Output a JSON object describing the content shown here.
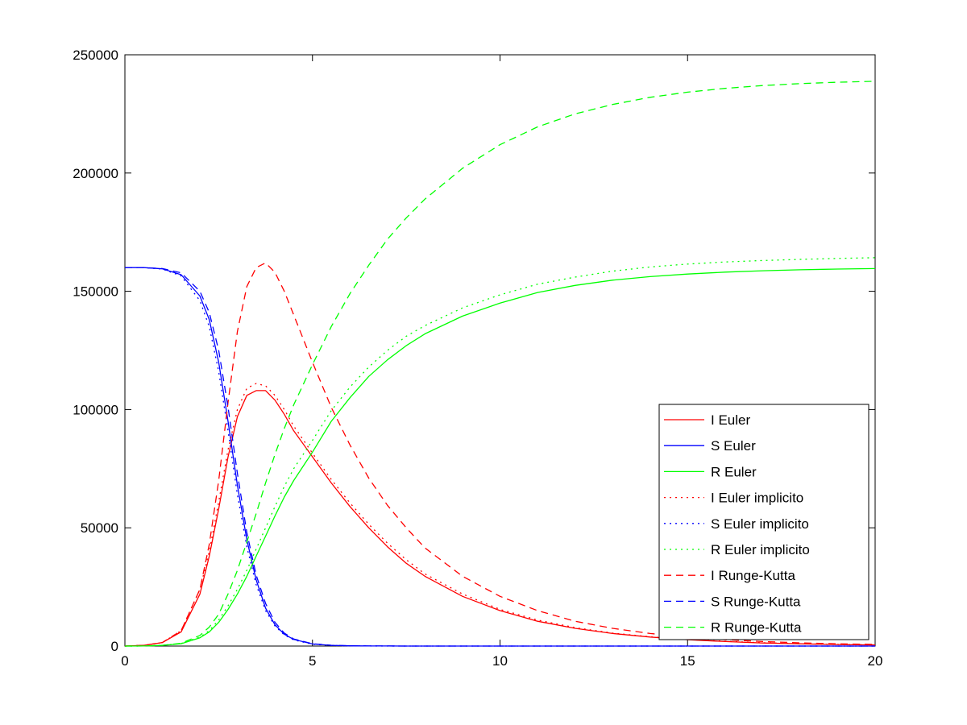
{
  "chart_data": {
    "type": "line",
    "title": "",
    "xlabel": "",
    "ylabel": "",
    "xlim": [
      0,
      20
    ],
    "ylim": [
      0,
      250000
    ],
    "x_ticks": [
      "0",
      "5",
      "10",
      "15",
      "20"
    ],
    "y_ticks": [
      "0",
      "50000",
      "100000",
      "150000",
      "200000",
      "250000"
    ],
    "grid": false,
    "legend_position": "bottom-right",
    "x": [
      0,
      0.5,
      1,
      1.5,
      2,
      2.25,
      2.5,
      2.75,
      3,
      3.25,
      3.5,
      3.75,
      4,
      4.25,
      4.5,
      5,
      5.5,
      6,
      6.5,
      7,
      7.5,
      8,
      9,
      10,
      11,
      12,
      13,
      14,
      15,
      16,
      17,
      18,
      19,
      20
    ],
    "series": [
      {
        "name": "I Euler",
        "color": "#ff0000",
        "style": "solid",
        "values": [
          0,
          300,
          1500,
          6000,
          22000,
          38000,
          58000,
          80000,
          97000,
          106000,
          108000,
          108000,
          104000,
          98000,
          91000,
          80000,
          69000,
          59000,
          50000,
          42000,
          35000,
          29500,
          21000,
          15000,
          10500,
          7500,
          5300,
          3800,
          2700,
          1900,
          1300,
          950,
          650,
          450
        ]
      },
      {
        "name": "S Euler",
        "color": "#0000ff",
        "style": "solid",
        "values": [
          160000,
          160000,
          159500,
          157000,
          148000,
          138000,
          120000,
          95000,
          68000,
          45000,
          28000,
          16000,
          9000,
          5000,
          2800,
          900,
          300,
          100,
          50,
          20,
          10,
          0,
          0,
          0,
          0,
          0,
          0,
          0,
          0,
          0,
          0,
          0,
          0,
          0
        ]
      },
      {
        "name": "R Euler",
        "color": "#00ff00",
        "style": "solid",
        "values": [
          0,
          50,
          300,
          1000,
          3500,
          6000,
          10000,
          15500,
          22000,
          29500,
          38000,
          46500,
          55000,
          63000,
          70000,
          82000,
          95000,
          105000,
          114000,
          121000,
          127000,
          132000,
          139500,
          145000,
          149500,
          152500,
          154700,
          156200,
          157300,
          158100,
          158700,
          159100,
          159400,
          159600
        ]
      },
      {
        "name": "I Euler implicito",
        "color": "#ff0000",
        "style": "dotted",
        "values": [
          0,
          300,
          1500,
          6500,
          24000,
          40000,
          61000,
          83000,
          100000,
          109000,
          111000,
          110000,
          106000,
          100000,
          93000,
          81500,
          70500,
          60500,
          51500,
          43500,
          36500,
          30500,
          22000,
          15500,
          11000,
          7800,
          5500,
          3900,
          2800,
          2000,
          1400,
          1000,
          700,
          500
        ]
      },
      {
        "name": "S Euler implicito",
        "color": "#0000ff",
        "style": "dotted",
        "values": [
          160000,
          160000,
          159400,
          156500,
          146000,
          135000,
          116000,
          91000,
          64000,
          42000,
          26000,
          15000,
          8500,
          4700,
          2600,
          800,
          250,
          80,
          40,
          15,
          5,
          0,
          0,
          0,
          0,
          0,
          0,
          0,
          0,
          0,
          0,
          0,
          0,
          0
        ]
      },
      {
        "name": "R Euler implicito",
        "color": "#00ff00",
        "style": "dotted",
        "values": [
          0,
          50,
          300,
          1100,
          3800,
          6500,
          11000,
          17000,
          24000,
          32000,
          41000,
          50000,
          59000,
          67500,
          75000,
          87000,
          99500,
          109500,
          118000,
          125000,
          131000,
          135500,
          143000,
          148500,
          153000,
          156000,
          158500,
          160300,
          161500,
          162400,
          163000,
          163500,
          163900,
          164200
        ]
      },
      {
        "name": "I Runge-Kutta",
        "color": "#ff0000",
        "style": "dashed",
        "values": [
          0,
          300,
          1500,
          6500,
          24000,
          43000,
          70000,
          103000,
          133000,
          152000,
          160000,
          162000,
          158000,
          150000,
          140000,
          120000,
          101000,
          85000,
          71000,
          59500,
          50000,
          41500,
          29500,
          21000,
          15000,
          10500,
          7500,
          5300,
          3800,
          2700,
          1900,
          1350,
          950,
          700
        ]
      },
      {
        "name": "S Runge-Kutta",
        "color": "#0000ff",
        "style": "dashed",
        "values": [
          160000,
          160000,
          159600,
          157800,
          150000,
          141000,
          125000,
          101000,
          73000,
          48000,
          30000,
          18000,
          10000,
          5500,
          3000,
          1000,
          350,
          120,
          50,
          20,
          10,
          0,
          0,
          0,
          0,
          0,
          0,
          0,
          0,
          0,
          0,
          0,
          0,
          0
        ]
      },
      {
        "name": "R Runge-Kutta",
        "color": "#00ff00",
        "style": "dashed",
        "values": [
          0,
          50,
          300,
          1200,
          4500,
          8000,
          13500,
          22000,
          32000,
          44000,
          56000,
          69000,
          81000,
          92000,
          102000,
          119000,
          135000,
          149000,
          161000,
          172000,
          181000,
          189000,
          202000,
          212000,
          219500,
          225000,
          229000,
          232000,
          234200,
          235800,
          237000,
          237800,
          238400,
          238800
        ]
      }
    ]
  }
}
